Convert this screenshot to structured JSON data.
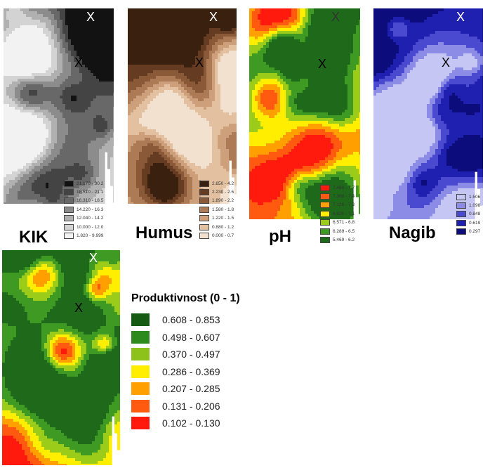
{
  "maps": [
    {
      "id": "kik",
      "label": "KIK",
      "markers": [
        "X",
        "X"
      ],
      "colors": [
        "#f2f2f2",
        "#d3d3d3",
        "#b0b0b0",
        "#8c8c8c",
        "#686868",
        "#444444",
        "#121212"
      ],
      "legend": [
        {
          "range": "21.170 - 30.2",
          "color": "#121212"
        },
        {
          "range": "18.510 - 21.1",
          "color": "#444444"
        },
        {
          "range": "16.310 - 18.5",
          "color": "#686868"
        },
        {
          "range": "14.220 - 16.3",
          "color": "#8c8c8c"
        },
        {
          "range": "12.040 - 14.2",
          "color": "#b0b0b0"
        },
        {
          "range": "10.000 - 12.0",
          "color": "#d3d3d3"
        },
        {
          "range": "1.820 - 9.999",
          "color": "#f2f2f2"
        }
      ]
    },
    {
      "id": "humus",
      "label": "Humus",
      "markers": [
        "X",
        "X"
      ],
      "colors": [
        "#f3e1d0",
        "#e3c0a0",
        "#cd9f7a",
        "#ad7a56",
        "#8a5938",
        "#653b22",
        "#3a200f"
      ],
      "legend": [
        {
          "range": "2.650 - 4.2",
          "color": "#3a200f"
        },
        {
          "range": "2.230 - 2.6",
          "color": "#653b22"
        },
        {
          "range": "1.890 - 2.2",
          "color": "#8a5938"
        },
        {
          "range": "1.580 - 1.8",
          "color": "#ad7a56"
        },
        {
          "range": "1.220 - 1.5",
          "color": "#cd9f7a"
        },
        {
          "range": "0.880 - 1.2",
          "color": "#e3c0a0"
        },
        {
          "range": "0.000 - 0.7",
          "color": "#f3e1d0"
        }
      ]
    },
    {
      "id": "ph",
      "label": "pH",
      "markers": [
        "X",
        "X"
      ],
      "colors": [
        "#ff1a0d",
        "#ff5a10",
        "#ffa000",
        "#ffee00",
        "#9ccc1a",
        "#3f9a24",
        "#1e6a1a"
      ],
      "legend": [
        {
          "range": "7.480 - 7.7",
          "color": "#ff1a0d"
        },
        {
          "range": "7.368 - 7.4",
          "color": "#ff5a10"
        },
        {
          "range": "7.128 - 7.3",
          "color": "#ffa000"
        },
        {
          "range": "6.825 - 7.1",
          "color": "#ffee00"
        },
        {
          "range": "6.571 - 6.8",
          "color": "#9ccc1a"
        },
        {
          "range": "6.289 - 6.5",
          "color": "#3f9a24"
        },
        {
          "range": "5.469 - 6.2",
          "color": "#1e6a1a"
        }
      ]
    },
    {
      "id": "nagib",
      "label": "Nagib",
      "markers": [
        "X",
        "X"
      ],
      "colors": [
        "#c6c6f5",
        "#8c8ce6",
        "#4a4ad0",
        "#2020b0",
        "#0c0c7c"
      ],
      "legend": [
        {
          "range": "1.506",
          "color": "#c6c6f5"
        },
        {
          "range": "1.098",
          "color": "#8c8ce6"
        },
        {
          "range": "0.848",
          "color": "#4a4ad0"
        },
        {
          "range": "0.619",
          "color": "#2020b0"
        },
        {
          "range": "0.297",
          "color": "#0c0c7c"
        }
      ]
    },
    {
      "id": "produktivnost",
      "label": "",
      "markers": [
        "X",
        "X"
      ],
      "colors": [
        "#ff1a0d",
        "#ff5a10",
        "#ffa000",
        "#ffee00",
        "#9ccc1a",
        "#3f9a24",
        "#1e6a1a"
      ],
      "legend": []
    }
  ],
  "produktivnost_legend": {
    "title": "Produktivnost (0 - 1)",
    "items": [
      {
        "range": "0.608 - 0.853",
        "color": "#145a12"
      },
      {
        "range": "0.498 - 0.607",
        "color": "#2f8a1e"
      },
      {
        "range": "0.370 - 0.497",
        "color": "#8cc21a"
      },
      {
        "range": "0.286 - 0.369",
        "color": "#ffee00"
      },
      {
        "range": "0.207 - 0.285",
        "color": "#ffa000"
      },
      {
        "range": "0.131 - 0.206",
        "color": "#ff5a10"
      },
      {
        "range": "0.102 - 0.130",
        "color": "#ff1a0d"
      }
    ]
  }
}
